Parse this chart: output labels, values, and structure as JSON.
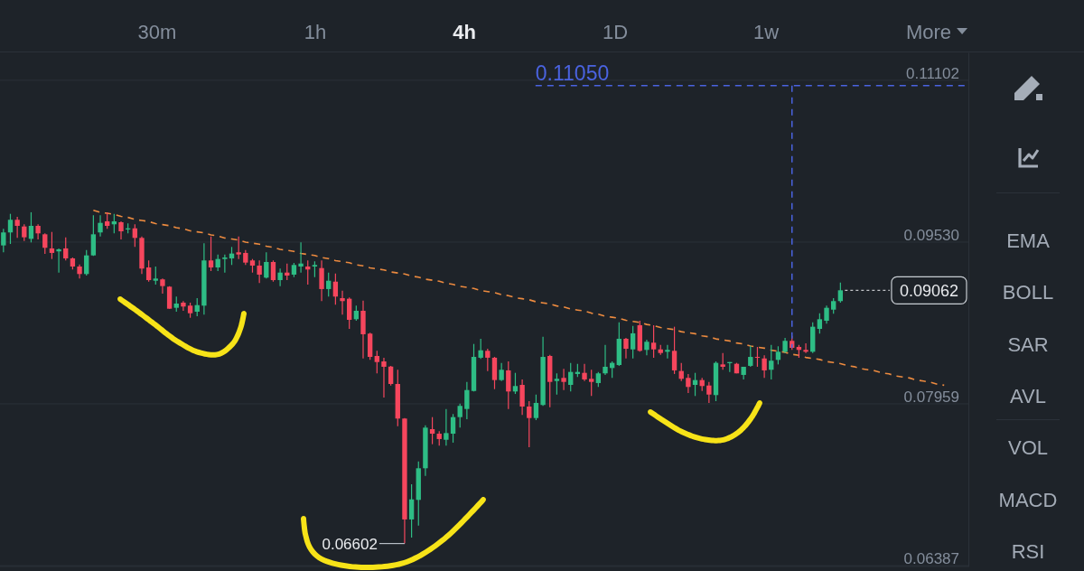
{
  "chart_data": {
    "type": "candlestick",
    "categories": [
      null,
      null,
      null,
      null,
      null,
      null,
      null,
      null,
      null,
      null,
      null,
      null,
      null,
      null,
      null,
      null,
      null,
      null,
      null,
      null,
      null,
      null,
      null,
      null,
      null,
      null,
      null,
      null,
      null,
      null,
      null,
      null,
      null,
      null,
      null,
      null,
      null,
      null,
      null,
      null,
      null,
      null,
      null,
      null,
      null,
      null,
      null,
      null,
      null,
      null,
      null,
      null,
      null,
      null,
      null,
      null,
      null,
      null,
      null,
      null,
      null,
      null,
      null,
      null,
      null,
      null,
      null,
      null,
      null,
      null,
      null,
      null,
      null,
      null,
      null,
      null,
      null,
      null,
      null,
      null,
      null,
      null,
      null,
      null,
      null,
      null,
      null,
      null,
      null,
      null,
      null,
      null,
      null,
      null,
      null,
      null,
      null,
      null,
      null,
      null,
      null,
      null,
      null,
      null,
      null,
      null,
      null,
      null,
      null,
      null,
      null,
      null,
      null,
      null,
      null,
      null,
      null,
      null,
      null,
      null,
      null,
      null,
      null,
      null,
      null,
      null,
      null,
      null,
      null,
      null,
      null,
      null,
      null,
      null,
      null,
      null,
      null,
      null,
      null,
      null
    ],
    "ohlc": [
      [
        0.09498,
        0.09659,
        0.09431,
        0.09624
      ],
      [
        0.09624,
        0.09805,
        0.09512,
        0.09747
      ],
      [
        0.09747,
        0.09776,
        0.09571,
        0.09688
      ],
      [
        0.09682,
        0.09703,
        0.09541,
        0.09577
      ],
      [
        0.09562,
        0.0982,
        0.09527,
        0.09688
      ],
      [
        0.09688,
        0.09703,
        0.09556,
        0.09615
      ],
      [
        0.09606,
        0.09615,
        0.09416,
        0.09475
      ],
      [
        0.09469,
        0.09629,
        0.09366,
        0.09425
      ],
      [
        0.0944,
        0.09469,
        0.09234,
        0.0946
      ],
      [
        0.09469,
        0.09577,
        0.09352,
        0.09372
      ],
      [
        0.09372,
        0.09381,
        0.09264,
        0.09293
      ],
      [
        0.09293,
        0.09313,
        0.09176,
        0.0922
      ],
      [
        0.0922,
        0.09454,
        0.09205,
        0.09401
      ],
      [
        0.09401,
        0.09791,
        0.09396,
        0.09606
      ],
      [
        0.09624,
        0.09791,
        0.09585,
        0.09717
      ],
      [
        0.09732,
        0.0982,
        0.09659,
        0.09688
      ],
      [
        0.09703,
        0.09805,
        0.09615,
        0.09732
      ],
      [
        0.09723,
        0.09732,
        0.09556,
        0.09635
      ],
      [
        0.09653,
        0.09712,
        0.09615,
        0.09664
      ],
      [
        0.09664,
        0.09703,
        0.09483,
        0.09571
      ],
      [
        0.09571,
        0.09585,
        0.0922,
        0.09273
      ],
      [
        0.09284,
        0.09352,
        0.09146,
        0.09161
      ],
      [
        0.09155,
        0.09293,
        0.09117,
        0.09176
      ],
      [
        0.09168,
        0.09176,
        0.0903,
        0.09103
      ],
      [
        0.09097,
        0.09103,
        0.08883,
        0.08883
      ],
      [
        0.08892,
        0.09001,
        0.08854,
        0.08933
      ],
      [
        0.08942,
        0.08957,
        0.08863,
        0.08904
      ],
      [
        0.08913,
        0.08942,
        0.08795,
        0.08839
      ],
      [
        0.08854,
        0.08986,
        0.0881,
        0.08918
      ],
      [
        0.08913,
        0.09519,
        0.08825,
        0.09352
      ],
      [
        0.09352,
        0.09585,
        0.09249,
        0.09284
      ],
      [
        0.09284,
        0.0941,
        0.09249,
        0.09366
      ],
      [
        0.09366,
        0.0941,
        0.09234,
        0.09381
      ],
      [
        0.09372,
        0.09483,
        0.09308,
        0.09419
      ],
      [
        0.09431,
        0.09585,
        0.09366,
        0.0941
      ],
      [
        0.09425,
        0.09454,
        0.09308,
        0.09331
      ],
      [
        0.09352,
        0.09366,
        0.09234,
        0.09302
      ],
      [
        0.09302,
        0.09352,
        0.09132,
        0.09214
      ],
      [
        0.09185,
        0.09431,
        0.09176,
        0.09337
      ],
      [
        0.09337,
        0.09352,
        0.09146,
        0.09161
      ],
      [
        0.09161,
        0.09273,
        0.09103,
        0.09234
      ],
      [
        0.09234,
        0.09322,
        0.09161,
        0.09205
      ],
      [
        0.09214,
        0.09328,
        0.0919,
        0.09308
      ],
      [
        0.09293,
        0.09527,
        0.09234,
        0.09322
      ],
      [
        0.09293,
        0.09352,
        0.09117,
        0.09264
      ],
      [
        0.09293,
        0.09343,
        0.0919,
        0.09308
      ],
      [
        0.09278,
        0.09352,
        0.08957,
        0.09074
      ],
      [
        0.09074,
        0.09234,
        0.09001,
        0.09155
      ],
      [
        0.09146,
        0.09225,
        0.08922,
        0.09001
      ],
      [
        0.08986,
        0.09059,
        0.08825,
        0.08957
      ],
      [
        0.0898,
        0.08992,
        0.08687,
        0.08775
      ],
      [
        0.08781,
        0.08913,
        0.08766,
        0.08863
      ],
      [
        0.08863,
        0.08962,
        0.084,
        0.08635
      ],
      [
        0.08641,
        0.0865,
        0.08386,
        0.08415
      ],
      [
        0.08424,
        0.08474,
        0.08255,
        0.08365
      ],
      [
        0.08371,
        0.08407,
        0.0802,
        0.08319
      ],
      [
        0.08321,
        0.08328,
        0.08137,
        0.08152
      ],
      [
        0.08152,
        0.0829,
        0.07742,
        0.07816
      ],
      [
        0.07816,
        0.07821,
        0.06602,
        0.06836
      ],
      [
        0.06836,
        0.07178,
        0.0666,
        0.07031
      ],
      [
        0.07026,
        0.074,
        0.06777,
        0.07333
      ],
      [
        0.07333,
        0.07751,
        0.07259,
        0.07728
      ],
      [
        0.07713,
        0.0783,
        0.07567,
        0.07669
      ],
      [
        0.07669,
        0.07693,
        0.07553,
        0.07617
      ],
      [
        0.0761,
        0.07909,
        0.07553,
        0.07675
      ],
      [
        0.07669,
        0.0786,
        0.07582,
        0.0783
      ],
      [
        0.0783,
        0.07962,
        0.07728,
        0.07939
      ],
      [
        0.07909,
        0.08172,
        0.0781,
        0.08093
      ],
      [
        0.08084,
        0.08541,
        0.08079,
        0.08415
      ],
      [
        0.08407,
        0.08591,
        0.08395,
        0.08479
      ],
      [
        0.08474,
        0.08494,
        0.08278,
        0.08407
      ],
      [
        0.08407,
        0.08415,
        0.08102,
        0.0819
      ],
      [
        0.0819,
        0.08357,
        0.08181,
        0.0829
      ],
      [
        0.08284,
        0.08371,
        0.07909,
        0.08079
      ],
      [
        0.08079,
        0.0826,
        0.08055,
        0.08132
      ],
      [
        0.08143,
        0.08196,
        0.07851,
        0.07933
      ],
      [
        0.07933,
        0.07985,
        0.07538,
        0.07821
      ],
      [
        0.07821,
        0.08049,
        0.07801,
        0.07968
      ],
      [
        0.07948,
        0.08611,
        0.07939,
        0.08415
      ],
      [
        0.08424,
        0.08436,
        0.07926,
        0.08172
      ],
      [
        0.08181,
        0.08255,
        0.08049,
        0.08202
      ],
      [
        0.08211,
        0.08299,
        0.08093,
        0.08172
      ],
      [
        0.08143,
        0.08357,
        0.08079,
        0.08269
      ],
      [
        0.08249,
        0.08348,
        0.0822,
        0.08269
      ],
      [
        0.0826,
        0.08348,
        0.08181,
        0.08196
      ],
      [
        0.08202,
        0.0829,
        0.08035,
        0.08172
      ],
      [
        0.08161,
        0.08269,
        0.08123,
        0.08255
      ],
      [
        0.08255,
        0.08532,
        0.0824,
        0.08319
      ],
      [
        0.08307,
        0.08371,
        0.08211,
        0.08357
      ],
      [
        0.08336,
        0.08751,
        0.08328,
        0.08591
      ],
      [
        0.08591,
        0.086,
        0.084,
        0.08494
      ],
      [
        0.08488,
        0.08716,
        0.084,
        0.08644
      ],
      [
        0.08723,
        0.08766,
        0.08465,
        0.08474
      ],
      [
        0.08483,
        0.08582,
        0.0843,
        0.08562
      ],
      [
        0.08553,
        0.08723,
        0.08407,
        0.08488
      ],
      [
        0.08488,
        0.08532,
        0.08436,
        0.08453
      ],
      [
        0.08465,
        0.08532,
        0.084,
        0.08483
      ],
      [
        0.08474,
        0.08708,
        0.08249,
        0.08284
      ],
      [
        0.08278,
        0.08357,
        0.08181,
        0.08202
      ],
      [
        0.08211,
        0.08249,
        0.08064,
        0.08123
      ],
      [
        0.08143,
        0.0826,
        0.08035,
        0.0819
      ],
      [
        0.0819,
        0.08211,
        0.08084,
        0.08132
      ],
      [
        0.08137,
        0.08172,
        0.07968,
        0.08049
      ],
      [
        0.08044,
        0.08371,
        0.07985,
        0.08357
      ],
      [
        0.08342,
        0.08453,
        0.0829,
        0.08319
      ],
      [
        0.08354,
        0.08365,
        0.08269,
        0.08365
      ],
      [
        0.08348,
        0.08357,
        0.08255,
        0.08255
      ],
      [
        0.0824,
        0.08319,
        0.08196,
        0.08319
      ],
      [
        0.08328,
        0.08523,
        0.08319,
        0.08415
      ],
      [
        0.08415,
        0.08512,
        0.08319,
        0.08407
      ],
      [
        0.084,
        0.0843,
        0.08211,
        0.08284
      ],
      [
        0.0829,
        0.08532,
        0.08196,
        0.08378
      ],
      [
        0.08386,
        0.08518,
        0.08342,
        0.08465
      ],
      [
        0.08465,
        0.086,
        0.08453,
        0.08571
      ],
      [
        0.08571,
        0.0862,
        0.08483,
        0.08503
      ],
      [
        0.08512,
        0.08532,
        0.08407,
        0.08483
      ],
      [
        0.08483,
        0.08547,
        0.08453,
        0.08465
      ],
      [
        0.08465,
        0.08751,
        0.08453,
        0.08708
      ],
      [
        0.08687,
        0.08839,
        0.08641,
        0.08781
      ],
      [
        0.08766,
        0.08913,
        0.08737,
        0.08892
      ],
      [
        0.08874,
        0.08986,
        0.08834,
        0.08957
      ],
      [
        0.08957,
        0.09138,
        0.08942,
        0.09062
      ],
      null,
      null,
      null,
      null,
      null,
      null,
      null,
      null,
      null,
      null,
      null,
      null,
      null,
      null,
      null,
      null,
      null,
      null
    ],
    "colors": [
      "#2ebd85",
      "#2ebd85",
      "#f6465d",
      "#f6465d",
      "#2ebd85",
      "#f6465d",
      "#f6465d",
      "#f6465d",
      "#2ebd85",
      "#f6465d",
      "#f6465d",
      "#f6465d",
      "#2ebd85",
      "#2ebd85",
      "#2ebd85",
      "#f6465d",
      "#2ebd85",
      "#f6465d",
      "#2ebd85",
      "#f6465d",
      "#f6465d",
      "#f6465d",
      "#2ebd85",
      "#f6465d",
      "#f6465d",
      "#2ebd85",
      "#f6465d",
      "#f6465d",
      "#2ebd85",
      "#2ebd85",
      "#f6465d",
      "#2ebd85",
      "#2ebd85",
      "#2ebd85",
      "#f6465d",
      "#f6465d",
      "#f6465d",
      "#f6465d",
      "#2ebd85",
      "#f6465d",
      "#2ebd85",
      "#f6465d",
      "#2ebd85",
      "#2ebd85",
      "#f6465d",
      "#2ebd85",
      "#f6465d",
      "#2ebd85",
      "#f6465d",
      "#f6465d",
      "#f6465d",
      "#2ebd85",
      "#f6465d",
      "#f6465d",
      "#f6465d",
      "#f6465d",
      "#f6465d",
      "#f6465d",
      "#f6465d",
      "#2ebd85",
      "#2ebd85",
      "#2ebd85",
      "#f6465d",
      "#f6465d",
      "#2ebd85",
      "#2ebd85",
      "#2ebd85",
      "#2ebd85",
      "#2ebd85",
      "#2ebd85",
      "#f6465d",
      "#f6465d",
      "#2ebd85",
      "#f6465d",
      "#2ebd85",
      "#f6465d",
      "#f6465d",
      "#2ebd85",
      "#2ebd85",
      "#f6465d",
      "#2ebd85",
      "#f6465d",
      "#2ebd85",
      "#2ebd85",
      "#f6465d",
      "#f6465d",
      "#2ebd85",
      "#2ebd85",
      "#2ebd85",
      "#2ebd85",
      "#f6465d",
      "#2ebd85",
      "#f6465d",
      "#2ebd85",
      "#f6465d",
      "#f6465d",
      "#2ebd85",
      "#f6465d",
      "#f6465d",
      "#f6465d",
      "#2ebd85",
      "#f6465d",
      "#f6465d",
      "#2ebd85",
      "#f6465d",
      "#2ebd85",
      "#f6465d",
      "#2ebd85",
      "#2ebd85",
      "#f6465d",
      "#f6465d",
      "#2ebd85",
      "#2ebd85",
      "#2ebd85",
      "#f6465d",
      "#f6465d",
      "#f6465d",
      "#2ebd85",
      "#2ebd85",
      "#2ebd85",
      "#2ebd85",
      "#2ebd85",
      null,
      null,
      null,
      null,
      null,
      null,
      null,
      null,
      null,
      null,
      null,
      null,
      null,
      null,
      null,
      null,
      null,
      null
    ],
    "series": [
      {
        "type": "line",
        "color": "#ec8a3f",
        "values": [
          null,
          null,
          null,
          null,
          null,
          null,
          null,
          null,
          null,
          null,
          null,
          null,
          null,
          0.0984,
          0.0982,
          0.0981,
          0.098,
          0.0978,
          0.0977,
          0.0975,
          0.0974,
          0.0973,
          0.0971,
          0.097,
          0.0969,
          0.0967,
          0.0966,
          0.0964,
          0.0963,
          0.0962,
          0.096,
          0.0959,
          0.0957,
          0.0956,
          0.0955,
          0.0953,
          0.0952,
          0.0951,
          0.0949,
          0.0948,
          0.0946,
          0.0945,
          0.0944,
          0.0942,
          0.0941,
          0.094,
          0.0938,
          0.0937,
          0.0935,
          0.0934,
          0.0933,
          0.0931,
          0.093,
          0.0928,
          0.0927,
          0.0926,
          0.0924,
          0.0923,
          0.0922,
          0.092,
          0.0919,
          0.0917,
          0.0916,
          0.0915,
          0.0913,
          0.0912,
          0.091,
          0.0909,
          0.0908,
          0.0906,
          0.0905,
          0.0904,
          0.0902,
          0.0901,
          0.0899,
          0.0898,
          0.0897,
          0.0895,
          0.0894,
          0.0893,
          0.0891,
          0.089,
          0.0888,
          0.0887,
          0.0886,
          0.0884,
          0.0883,
          0.0881,
          0.088,
          0.0879,
          0.0877,
          0.0876,
          0.0875,
          0.0873,
          0.0872,
          0.087,
          0.0869,
          0.0868,
          0.0866,
          0.0865,
          0.0864,
          0.0862,
          0.0861,
          0.0859,
          0.0858,
          0.0857,
          0.0855,
          0.0854,
          0.0852,
          0.0851,
          0.085,
          0.0848,
          0.0847,
          0.0846,
          0.0844,
          0.0843,
          0.0841,
          0.084,
          0.0839,
          0.0837,
          0.0836,
          0.0835,
          0.0833,
          0.0832,
          0.083,
          0.0829,
          0.0828,
          0.0826,
          0.0825,
          0.0823,
          0.0822,
          0.0821,
          0.0819,
          0.0818,
          0.0817,
          0.0815,
          0.0814,
          null,
          null,
          null
        ]
      }
    ],
    "line_style": "dashed",
    "ylim": [
      0.06379,
      0.11373
    ],
    "yticks": [
      0.06387,
      0.07959,
      {
        "value": 0.0953,
        "label": "0.09530"
      },
      0.11102
    ],
    "grid": "y",
    "tick_labels": "y",
    "ref_lines": [
      {
        "axis": "y",
        "value": 0.1105,
        "label": "0.11050",
        "color": "#4a63e0",
        "line_style": "dashed"
      }
    ],
    "annotations": [
      "30m",
      "1h",
      "4h",
      "1D",
      "1w",
      "More",
      "EMA",
      "BOLL",
      "SAR",
      "AVL",
      "VOL",
      "MACD",
      "RSI",
      "0.06602",
      "0.09062"
    ]
  }
}
